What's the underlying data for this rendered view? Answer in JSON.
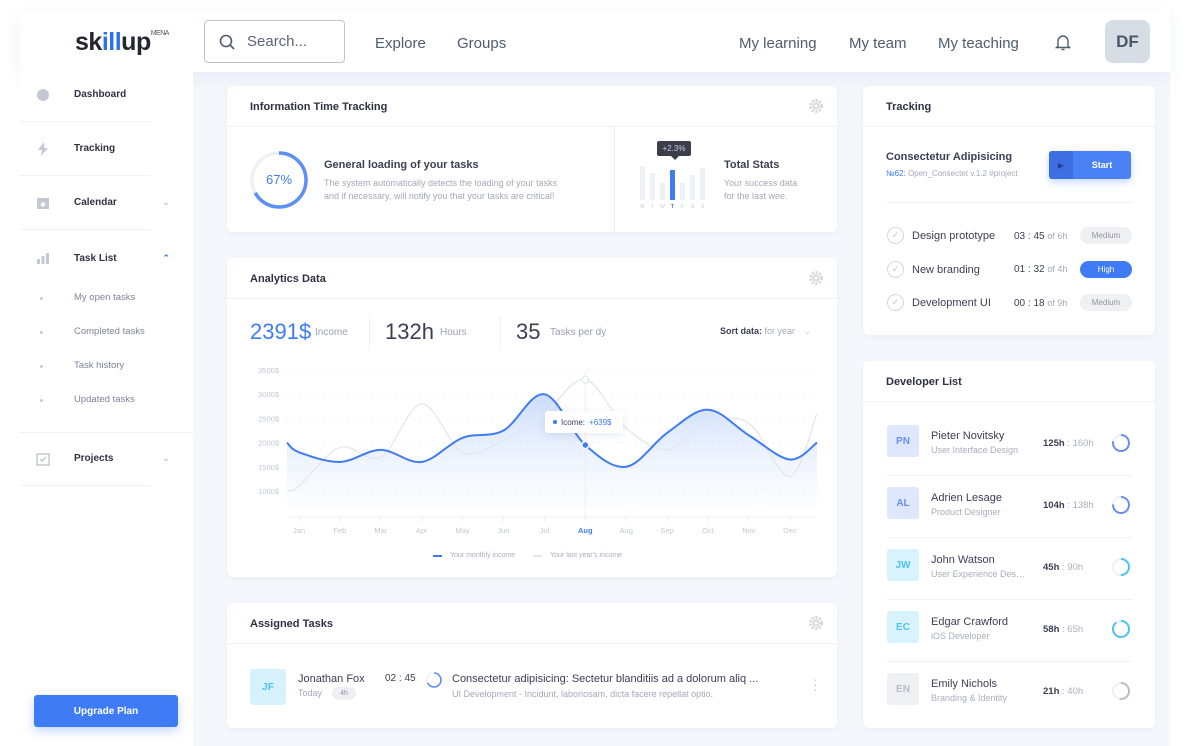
{
  "header": {
    "logo": "skillup",
    "logo_parts": [
      "sk",
      "i",
      "l",
      "l",
      "up"
    ],
    "logo_super": "MENA",
    "search_placeholder": "Search...",
    "nav_left": [
      "Explore",
      "Groups"
    ],
    "nav_right": [
      "My learning",
      "My team",
      "My teaching"
    ],
    "avatar": "DF"
  },
  "sidebar": {
    "items": [
      {
        "label": "Dashboard",
        "icon": "dashboard-icon"
      },
      {
        "label": "Tracking",
        "icon": "lightning-icon"
      },
      {
        "label": "Calendar",
        "icon": "calendar-icon"
      },
      {
        "label": "Task List",
        "icon": "bar-chart-icon"
      },
      {
        "label": "Projects",
        "icon": "checklist-icon"
      }
    ],
    "subitems": [
      "My open tasks",
      "Completed tasks",
      "Task history",
      "Updated tasks"
    ],
    "upgrade": "Upgrade Plan"
  },
  "time_tracking": {
    "title": "Information Time Tracking",
    "progress_percent": 67,
    "progress_label": "67%",
    "loading_title": "General loading of your tasks",
    "loading_desc_1": "The system automatically detects the loading of your tasks",
    "loading_desc_2": "and if necessary, will notify you that your tasks are critical!",
    "stats_badge": "+2.3%",
    "stats_days": [
      "M",
      "T",
      "W",
      "T",
      "F",
      "S",
      "S"
    ],
    "stats_active_day": 3,
    "stats_title": "Total Stats",
    "stats_desc_1": "Your success data",
    "stats_desc_2": "for the last wee."
  },
  "analytics": {
    "title": "Analytics Data",
    "income": "2391$",
    "income_label": "Income",
    "hours": "132h",
    "hours_label": "Hours",
    "tasks": "35",
    "tasks_label": "Tasks per dy",
    "sort_label": "Sort data:",
    "sort_value": "for year",
    "tooltip_label": "Icome:",
    "tooltip_value": "+639$"
  },
  "chart_data": {
    "type": "line",
    "categories": [
      "Jan",
      "Feb",
      "Mar",
      "Apr",
      "May",
      "Jun",
      "Jul",
      "Aug",
      "Aug",
      "Sep",
      "Oct",
      "Nov",
      "Dec"
    ],
    "highlight_index": 7,
    "ylim": [
      0,
      3500
    ],
    "yticks": [
      "3500$",
      "3000$",
      "2500$",
      "2000$",
      "1500$",
      "1000$"
    ],
    "ytick_values": [
      3500,
      3000,
      2500,
      2000,
      1500,
      1000
    ],
    "grid": true,
    "legend_placement": "bottom",
    "series": [
      {
        "name": "Your monthly income",
        "color": "#3f7bf5",
        "values": [
          1800,
          1600,
          1850,
          1600,
          2100,
          2250,
          3000,
          1950,
          1500,
          2200,
          2680,
          2150,
          1650
        ]
      },
      {
        "name": "Your last year's income",
        "color": "#e3e6ec",
        "values": [
          1100,
          1900,
          1700,
          2800,
          1800,
          2050,
          2600,
          3300,
          2300,
          1850,
          2400,
          2400,
          1300
        ]
      }
    ]
  },
  "assigned": {
    "title": "Assigned Tasks",
    "tasks": [
      {
        "initials": "JF",
        "name": "Jonathan Fox",
        "when": "Today",
        "duration": "4h",
        "time": "02 : 45",
        "title": "Consectetur adipisicing: Sectetur blanditiis ad a dolorum aliq ...",
        "desc": "UI Development - Incidunt, laboriosam, dicta facere repellat optio."
      }
    ]
  },
  "tracking": {
    "title": "Tracking",
    "project": "Consectetur Adipisicing",
    "project_id": "№62:",
    "project_meta": "Open_Consectet v.1.2 #project",
    "start": "Start",
    "tasks": [
      {
        "name": "Design prototype",
        "spent": "03 : 45",
        "total": "of 6h",
        "priority": "Medium"
      },
      {
        "name": "New branding",
        "spent": "01 : 32",
        "total": "of 4h",
        "priority": "High"
      },
      {
        "name": "Development UI",
        "spent": "00 : 18",
        "total": "of 9h",
        "priority": "Medium"
      }
    ]
  },
  "developers": {
    "title": "Developer List",
    "items": [
      {
        "initials": "PN",
        "name": "Pieter Novitsky",
        "role": "User Interface Design",
        "done": "125h",
        "total": "160h",
        "color": "#6b8ff0",
        "bg": "#dfe7fd"
      },
      {
        "initials": "AL",
        "name": "Adrien Lesage",
        "role": "Product Designer",
        "done": "104h",
        "total": "138h",
        "color": "#6b8ff0",
        "bg": "#dfe7fd"
      },
      {
        "initials": "JW",
        "name": "John Watson",
        "role": "User Experience Design",
        "done": "45h",
        "total": "90h",
        "color": "#4cc3f5",
        "bg": "#d9f3fd"
      },
      {
        "initials": "EC",
        "name": "Edgar Crawford",
        "role": "iOS Developer",
        "done": "58h",
        "total": "65h",
        "color": "#4cc3f5",
        "bg": "#d9f3fd"
      },
      {
        "initials": "EN",
        "name": "Emily Nichols",
        "role": "Branding & Identity",
        "done": "21h",
        "total": "40h",
        "color": "#b9bec8",
        "bg": "#eef0f3"
      }
    ]
  }
}
